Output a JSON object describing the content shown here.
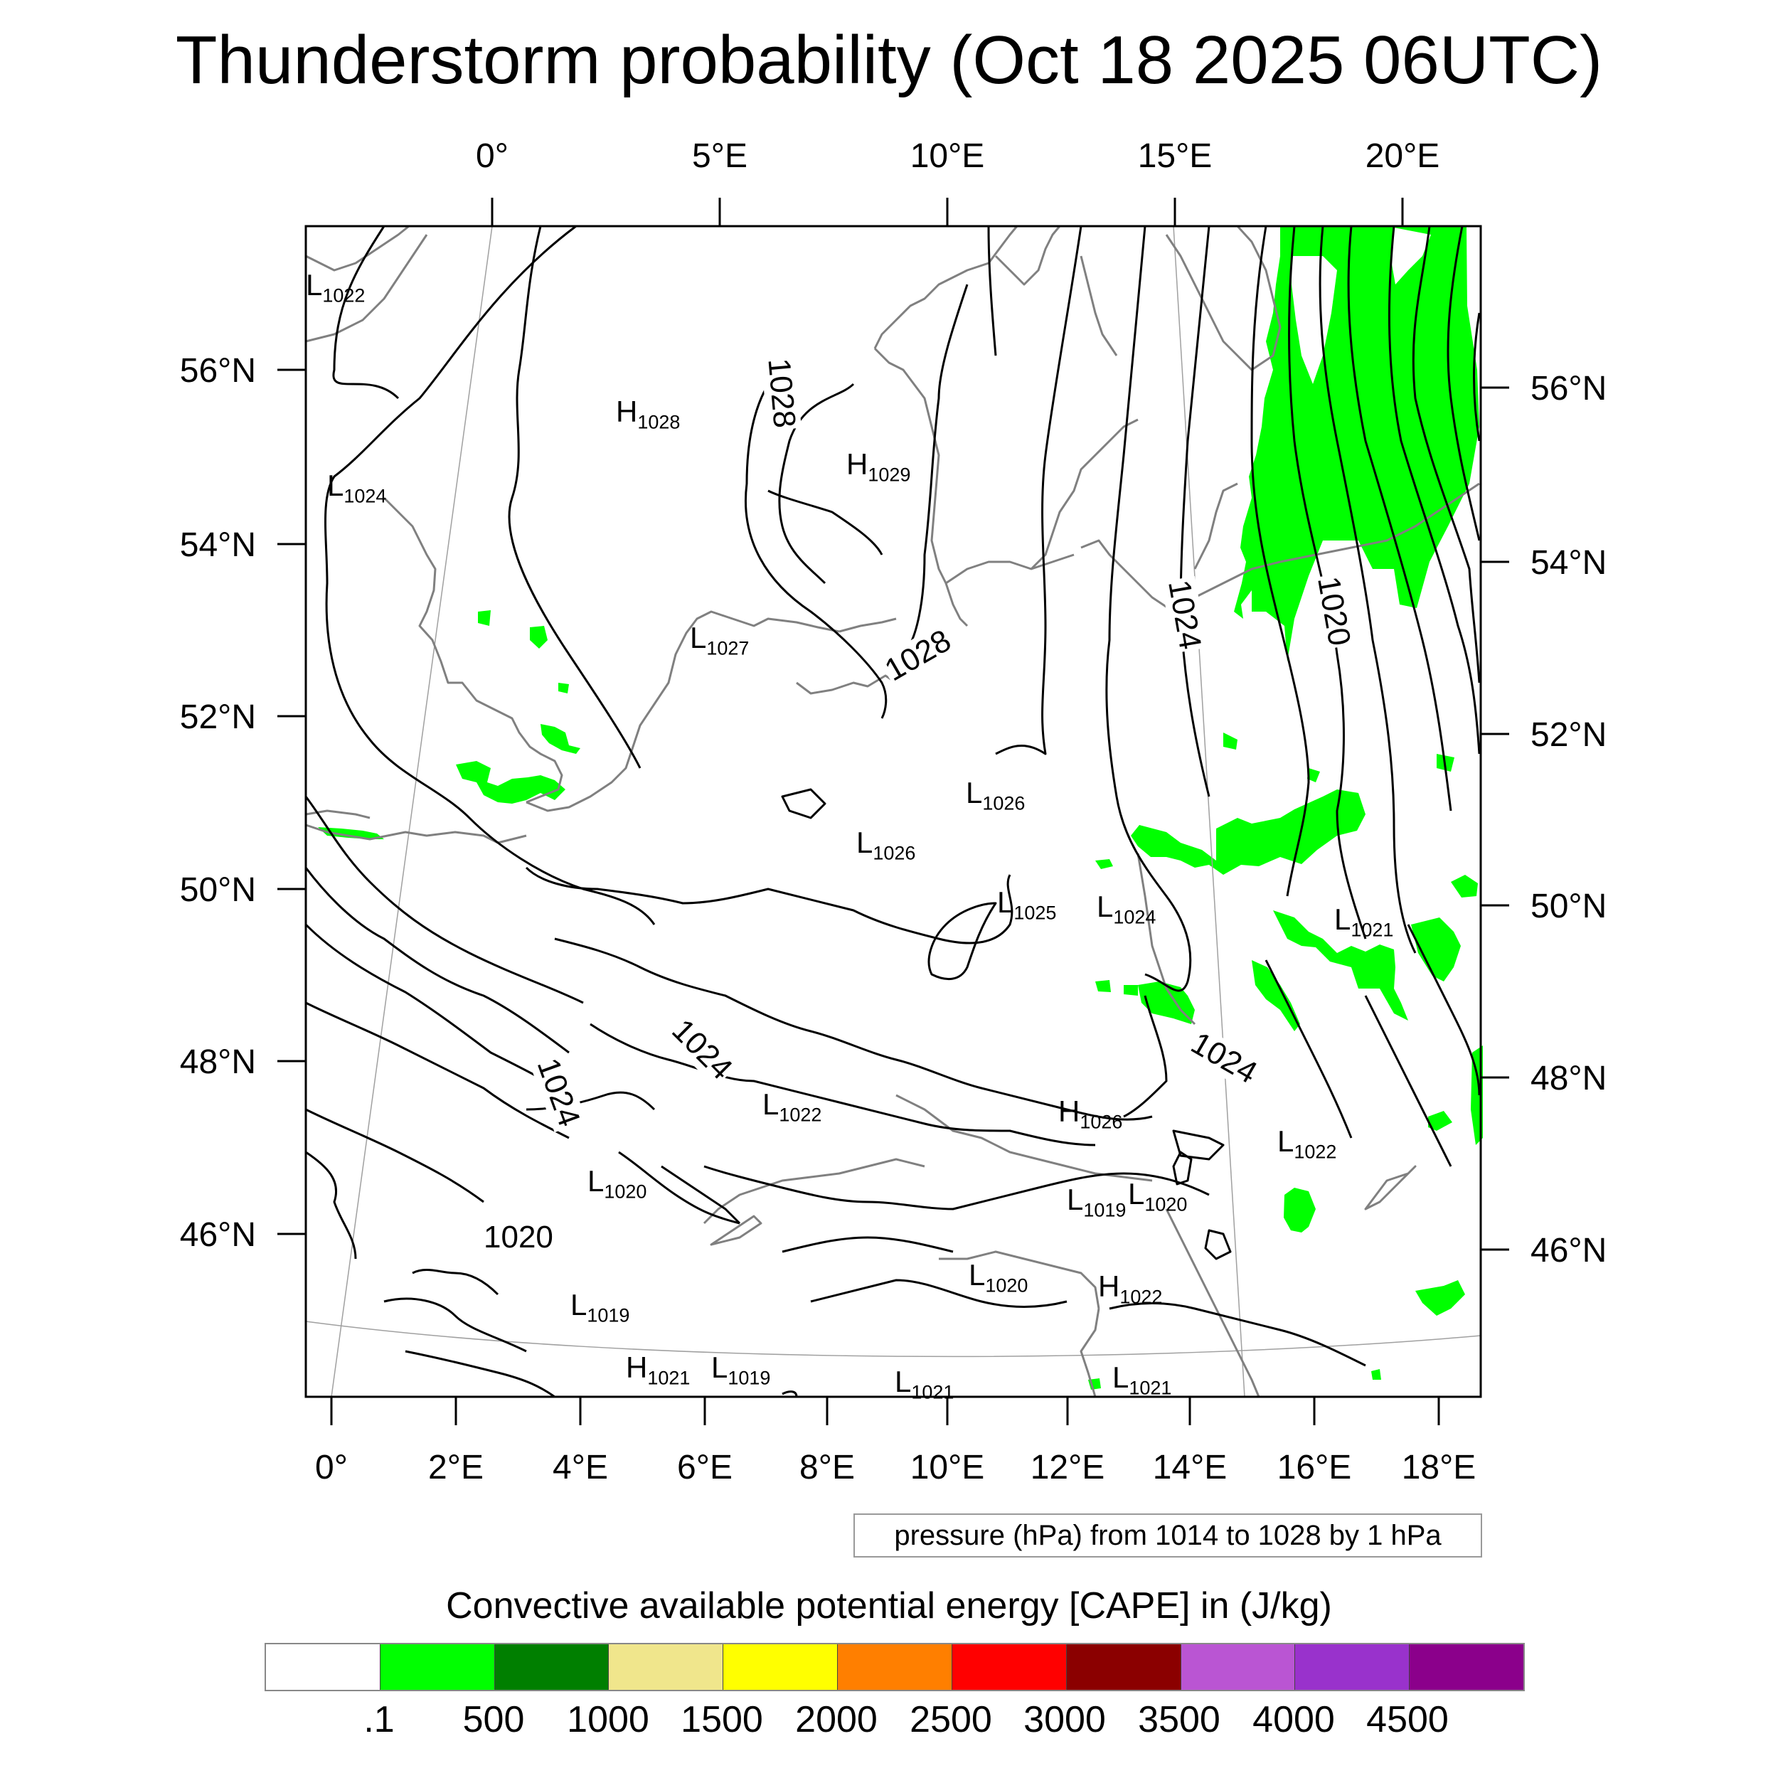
{
  "title": "Thunderstorm probability (Oct 18 2025 06UTC)",
  "top_lon_labels": [
    "0°",
    "5°E",
    "10°E",
    "15°E",
    "20°E"
  ],
  "bottom_lon_labels": [
    "0°",
    "2°E",
    "4°E",
    "6°E",
    "8°E",
    "10°E",
    "12°E",
    "14°E",
    "16°E",
    "18°E"
  ],
  "left_lat_labels": [
    "56°N",
    "54°N",
    "52°N",
    "50°N",
    "48°N",
    "46°N"
  ],
  "right_lat_labels": [
    "56°N",
    "54°N",
    "52°N",
    "50°N",
    "48°N",
    "46°N"
  ],
  "pressure_systems": [
    {
      "type": "L",
      "value": "1022"
    },
    {
      "type": "H",
      "value": "1028"
    },
    {
      "type": "H",
      "value": "1029"
    },
    {
      "type": "L",
      "value": "1024"
    },
    {
      "type": "L",
      "value": "1027"
    },
    {
      "type": "L",
      "value": "1026"
    },
    {
      "type": "L",
      "value": "1026"
    },
    {
      "type": "L",
      "value": "1025"
    },
    {
      "type": "L",
      "value": "1024"
    },
    {
      "type": "L",
      "value": "1021"
    },
    {
      "type": "L",
      "value": "1022"
    },
    {
      "type": "H",
      "value": "1026"
    },
    {
      "type": "L",
      "value": "1022"
    },
    {
      "type": "L",
      "value": "1020"
    },
    {
      "type": "L",
      "value": "1019"
    },
    {
      "type": "L",
      "value": "1020"
    },
    {
      "type": "L",
      "value": "1020"
    },
    {
      "type": "H",
      "value": "1022"
    },
    {
      "type": "L",
      "value": "1019"
    },
    {
      "type": "H",
      "value": "1021"
    },
    {
      "type": "L",
      "value": "1019"
    },
    {
      "type": "L",
      "value": "1021"
    },
    {
      "type": "L",
      "value": "1021"
    }
  ],
  "isobar_labels": [
    "1028",
    "1028",
    "1024",
    "1020",
    "1024",
    "1024",
    "1024",
    "1020"
  ],
  "info_box": "pressure (hPa) from 1014 to 1028 by 1 hPa",
  "colorbar": {
    "title": "Convective available potential energy [CAPE] in (J/kg)",
    "labels": [
      ".1",
      "500",
      "1000",
      "1500",
      "2000",
      "2500",
      "3000",
      "3500",
      "4000",
      "4500"
    ],
    "colors": [
      "#ffffff",
      "#00ff00",
      "#007f00",
      "#f0e68c",
      "#ffff00",
      "#ff7f00",
      "#ff0000",
      "#8b0000",
      "#ba55d3",
      "#9932cc",
      "#8b008b"
    ]
  }
}
